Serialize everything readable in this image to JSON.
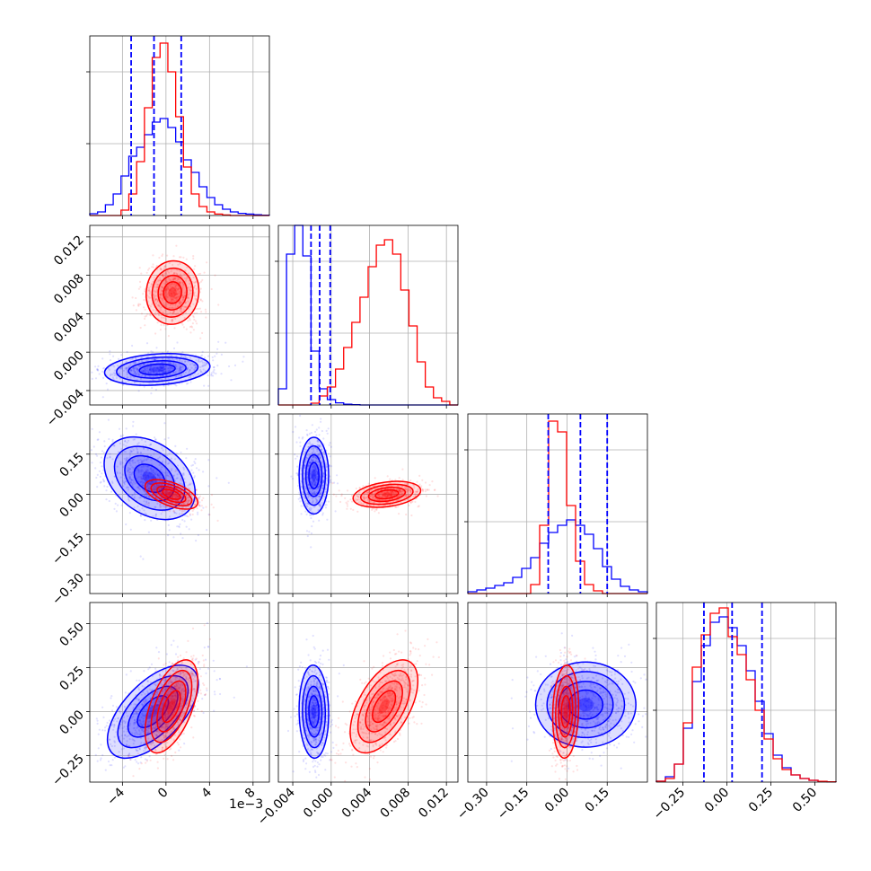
{
  "chart_data": {
    "type": "corner",
    "colors": {
      "series_a": "#0000ff",
      "series_b": "#ff0000",
      "grid": "#b0b0b0"
    },
    "grid": true,
    "offset_label": "1e−3",
    "params": [
      {
        "range": [
          -7,
          9.5
        ],
        "ticks": [
          -4,
          0,
          4,
          8
        ],
        "tick_labels": [
          "−4",
          "0",
          "4",
          "8"
        ]
      },
      {
        "range": [
          -0.0055,
          0.0132
        ],
        "ticks": [
          -0.004,
          0.0,
          0.004,
          0.008,
          0.012
        ],
        "tick_labels": [
          "−0.004",
          "0.000",
          "0.004",
          "0.008",
          "0.012"
        ]
      },
      {
        "range": [
          -0.37,
          0.3
        ],
        "ticks": [
          -0.3,
          -0.15,
          0.0,
          0.15
        ],
        "tick_labels": [
          "−0.30",
          "−0.15",
          "0.00",
          "0.15"
        ]
      },
      {
        "range": [
          -0.4,
          0.62
        ],
        "ticks": [
          -0.25,
          0.0,
          0.25,
          0.5
        ],
        "tick_labels": [
          "−0.25",
          "0.00",
          "0.25",
          "0.50"
        ]
      }
    ],
    "diagonal_histograms": [
      {
        "param": 0,
        "blue_quantiles": [
          -3.2,
          -1.1,
          1.4
        ],
        "blue": [
          0.01,
          0.02,
          0.06,
          0.12,
          0.22,
          0.33,
          0.38,
          0.45,
          0.52,
          0.54,
          0.49,
          0.41,
          0.31,
          0.24,
          0.16,
          0.1,
          0.06,
          0.035,
          0.02,
          0.012,
          0.008,
          0.004,
          0.002
        ],
        "red": [
          0,
          0,
          0,
          0,
          0.03,
          0.12,
          0.3,
          0.6,
          0.88,
          0.96,
          0.8,
          0.55,
          0.27,
          0.12,
          0.05,
          0.02,
          0.008,
          0.003,
          0,
          0,
          0,
          0,
          0
        ]
      },
      {
        "param": 1,
        "blue_quantiles": [
          -0.0021,
          -0.0012,
          -0.0001
        ],
        "blue": [
          0.09,
          0.84,
          1.0,
          0.83,
          0.3,
          0.09,
          0.03,
          0.012,
          0.004,
          0.002,
          0,
          0,
          0,
          0,
          0,
          0,
          0,
          0,
          0,
          0,
          0,
          0
        ],
        "red": [
          0,
          0,
          0,
          0,
          0.01,
          0.05,
          0.1,
          0.2,
          0.32,
          0.46,
          0.6,
          0.77,
          0.89,
          0.92,
          0.84,
          0.64,
          0.44,
          0.24,
          0.1,
          0.04,
          0.02,
          0
        ]
      },
      {
        "param": 2,
        "blue_quantiles": [
          -0.07,
          0.05,
          0.15
        ],
        "blue": [
          0.01,
          0.02,
          0.03,
          0.045,
          0.06,
          0.09,
          0.14,
          0.2,
          0.28,
          0.34,
          0.38,
          0.41,
          0.38,
          0.33,
          0.25,
          0.15,
          0.08,
          0.04,
          0.02,
          0.01
        ],
        "red": [
          0,
          0,
          0,
          0,
          0,
          0,
          0,
          0.05,
          0.38,
          0.96,
          0.9,
          0.49,
          0.18,
          0.05,
          0.015,
          0,
          0,
          0,
          0,
          0
        ]
      },
      {
        "param": 3,
        "blue_quantiles": [
          -0.13,
          0.03,
          0.2
        ],
        "blue": [
          0.005,
          0.03,
          0.1,
          0.3,
          0.56,
          0.76,
          0.89,
          0.92,
          0.86,
          0.76,
          0.62,
          0.45,
          0.27,
          0.15,
          0.08,
          0.04,
          0.02,
          0.01,
          0.004,
          0.002
        ],
        "red": [
          0.005,
          0.02,
          0.1,
          0.33,
          0.64,
          0.82,
          0.94,
          0.97,
          0.81,
          0.71,
          0.57,
          0.4,
          0.24,
          0.13,
          0.07,
          0.04,
          0.02,
          0.01,
          0.004,
          0.002
        ]
      }
    ],
    "joint_distributions": [
      {
        "x": 0,
        "y": 1,
        "blue": {
          "mx": -0.8,
          "my": -0.0018,
          "sx": 2.2,
          "sy": 0.00075,
          "rho": 0.2
        },
        "red": {
          "mx": 0.6,
          "my": 0.0062,
          "sx": 1.1,
          "sy": 0.0015,
          "rho": 0.05
        }
      },
      {
        "x": 0,
        "y": 2,
        "blue": {
          "mx": -1.5,
          "my": 0.06,
          "sx": 1.9,
          "sy": 0.07,
          "rho": -0.35
        },
        "red": {
          "mx": 0.5,
          "my": 0.0,
          "sx": 1.1,
          "sy": 0.025,
          "rho": -0.55
        }
      },
      {
        "x": 0,
        "y": 3,
        "blue": {
          "mx": -1.2,
          "my": 0.0,
          "sx": 1.9,
          "sy": 0.12,
          "rho": 0.6
        },
        "red": {
          "mx": 0.5,
          "my": 0.03,
          "sx": 1.1,
          "sy": 0.12,
          "rho": 0.55
        }
      },
      {
        "x": 1,
        "y": 2,
        "blue": {
          "mx": -0.0018,
          "my": 0.07,
          "sx": 0.0007,
          "sy": 0.065,
          "rho": 0.0
        },
        "red": {
          "mx": 0.0058,
          "my": 0.0,
          "sx": 0.0016,
          "sy": 0.022,
          "rho": 0.3
        }
      },
      {
        "x": 1,
        "y": 3,
        "blue": {
          "mx": -0.0018,
          "my": 0.0,
          "sx": 0.0007,
          "sy": 0.12,
          "rho": -0.05
        },
        "red": {
          "mx": 0.0055,
          "my": 0.03,
          "sx": 0.0016,
          "sy": 0.12,
          "rho": 0.55
        }
      },
      {
        "x": 2,
        "y": 3,
        "blue": {
          "mx": 0.07,
          "my": 0.04,
          "sx": 0.085,
          "sy": 0.11,
          "rho": 0.0
        },
        "red": {
          "mx": -0.005,
          "my": 0.0,
          "sx": 0.022,
          "sy": 0.12,
          "rho": 0.1
        }
      }
    ]
  }
}
